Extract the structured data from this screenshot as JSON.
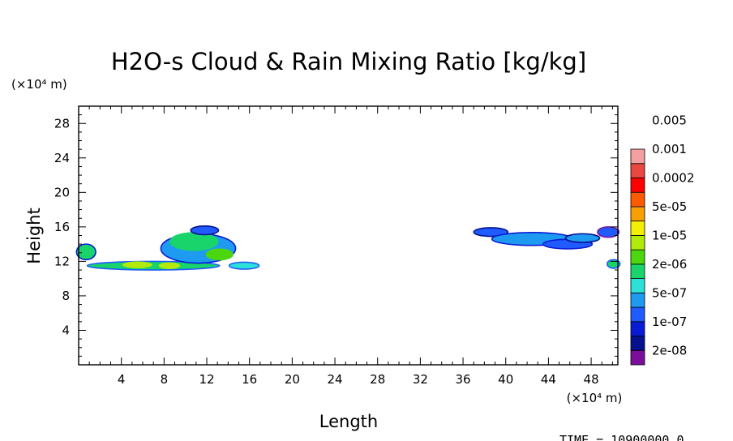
{
  "chart_data": {
    "type": "heatmap",
    "title": "H2O-s Cloud & Rain Mixing Ratio [kg/kg]",
    "xlabel": "Length",
    "ylabel": "Height",
    "x_unit": "(×10⁴ m)",
    "y_unit": "(×10⁴ m)",
    "xlim": [
      0,
      50.5
    ],
    "ylim": [
      0,
      30
    ],
    "x_ticks": [
      4,
      8,
      12,
      16,
      20,
      24,
      28,
      32,
      36,
      40,
      44,
      48
    ],
    "y_ticks": [
      4,
      8,
      12,
      16,
      20,
      24,
      28
    ],
    "colorbar": {
      "colors": [
        "#7b0f9c",
        "#06118f",
        "#0a1bd6",
        "#1f5bff",
        "#1e9bf0",
        "#2ce2d8",
        "#19d36b",
        "#4cd60e",
        "#b2ea0b",
        "#f2ef06",
        "#f8a000",
        "#ff5a00",
        "#ff0000",
        "#e84840",
        "#f5a0a0"
      ],
      "labels": [
        "2e-08",
        "1e-07",
        "5e-07",
        "2e-06",
        "1e-05",
        "5e-05",
        "0.0002",
        "0.001",
        "0.005"
      ]
    },
    "features": [
      {
        "x": [
          0.5,
          2.0
        ],
        "y": [
          12.2,
          14.2
        ],
        "level": "2e-06"
      },
      {
        "x": [
          1.0,
          11.0
        ],
        "y": [
          11.0,
          12.2
        ],
        "level": "2e-06"
      },
      {
        "x": [
          7.0,
          14.5
        ],
        "y": [
          11.8,
          16.0
        ],
        "level": "2e-06"
      },
      {
        "x": [
          14.0,
          17.0
        ],
        "y": [
          11.0,
          12.2
        ],
        "level": "5e-07"
      },
      {
        "x": [
          36.5,
          50.5
        ],
        "y": [
          13.0,
          16.0
        ],
        "level": "5e-07"
      },
      {
        "x": [
          49.5,
          50.5
        ],
        "y": [
          11.2,
          12.2
        ],
        "level": "2e-06"
      }
    ],
    "footer": "TIME = 10900000.0"
  }
}
